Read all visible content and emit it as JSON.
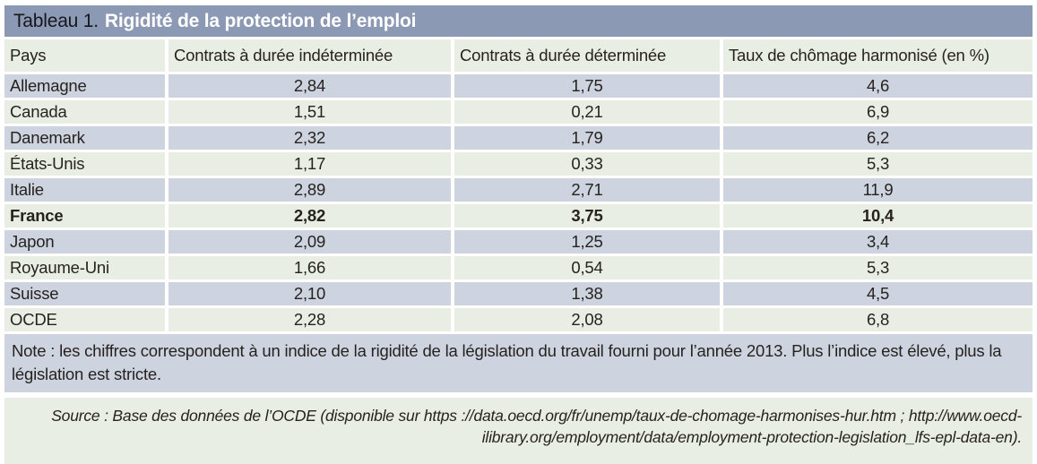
{
  "title": {
    "prefix": "Tableau 1.",
    "text": "Rigidité de la protection de l’emploi"
  },
  "table": {
    "headers": {
      "country": "Pays",
      "cdi": "Contrats à durée indéterminée",
      "cdd": "Contrats à durée déterminée",
      "unemployment": "Taux de chômage harmonisé (en %)"
    },
    "rows": [
      {
        "country": "Allemagne",
        "cdi": "2,84",
        "cdd": "1,75",
        "unemployment": "4,6"
      },
      {
        "country": "Canada",
        "cdi": "1,51",
        "cdd": "0,21",
        "unemployment": "6,9"
      },
      {
        "country": "Danemark",
        "cdi": "2,32",
        "cdd": "1,79",
        "unemployment": "6,2"
      },
      {
        "country": "États-Unis",
        "cdi": "1,17",
        "cdd": "0,33",
        "unemployment": "5,3"
      },
      {
        "country": "Italie",
        "cdi": "2,89",
        "cdd": "2,71",
        "unemployment": "11,9"
      },
      {
        "country": "France",
        "cdi": "2,82",
        "cdd": "3,75",
        "unemployment": "10,4"
      },
      {
        "country": "Japon",
        "cdi": "2,09",
        "cdd": "1,25",
        "unemployment": "3,4"
      },
      {
        "country": "Royaume-Uni",
        "cdi": "1,66",
        "cdd": "0,54",
        "unemployment": "5,3"
      },
      {
        "country": "Suisse",
        "cdi": "2,10",
        "cdd": "1,38",
        "unemployment": "4,5"
      },
      {
        "country": "OCDE",
        "cdi": "2,28",
        "cdd": "2,08",
        "unemployment": "6,8"
      }
    ]
  },
  "note": "Note : les chiffres correspondent à un indice de la rigidité de la législation du travail fourni pour l’année 2013. Plus l’indice est élevé, plus la législation est stricte.",
  "source": "Source : Base des données de l’OCDE (disponible sur https ://data.oecd.org/fr/unemp/taux-de-chomage-harmonises-hur.htm ; http://www.oecd-ilibrary.org/employment/data/employment-protection-legislation_lfs-epl-data-en).",
  "colors": {
    "title_bar": "#8c99b5",
    "row_lavender": "#ced3e0",
    "row_green": "#e9eee5",
    "title_text": "#ffffff"
  }
}
